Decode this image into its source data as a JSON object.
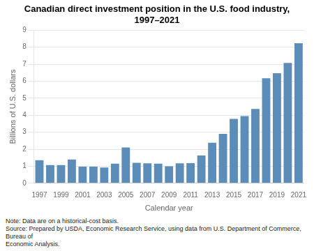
{
  "chart_data": {
    "type": "bar",
    "title": "Canadian direct investment position in the U.S. food industry, 1997–2021",
    "ylabel": "Billions of U.S. dollars",
    "xlabel": "Calendar year",
    "categories": [
      "1997",
      null,
      "1999",
      null,
      "2001",
      null,
      "2003",
      null,
      "2005",
      null,
      "2007",
      null,
      "2009",
      null,
      "2011",
      null,
      "2013",
      null,
      "2015",
      null,
      "2017",
      null,
      "2019",
      null,
      "2021"
    ],
    "values": [
      1.35,
      1.07,
      1.07,
      1.4,
      0.98,
      0.98,
      0.92,
      1.15,
      2.1,
      1.2,
      1.17,
      1.15,
      1.0,
      1.17,
      1.18,
      1.63,
      2.38,
      2.9,
      3.78,
      3.95,
      4.37,
      6.17,
      6.47,
      7.07,
      8.23
    ],
    "color": "#5b8db8",
    "ylim": [
      0,
      9
    ],
    "yticks": [
      0,
      1,
      2,
      3,
      4,
      5,
      6,
      7,
      8,
      9
    ],
    "grid": true,
    "note": "Note: Data are on a historical-cost basis.\nSource: Prepared by USDA, Economic Research Service, using data from U.S. Department of Commerce, Bureau of\nEconomic Analysis."
  }
}
